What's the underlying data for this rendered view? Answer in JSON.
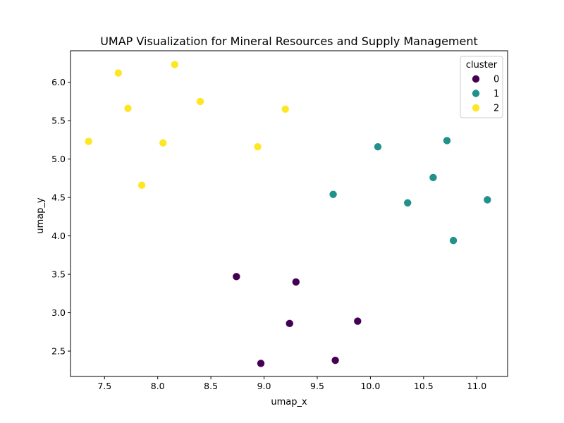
{
  "chart_data": {
    "type": "scatter",
    "title": "UMAP Visualization for Mineral Resources and Supply Management",
    "xlabel": "umap_x",
    "ylabel": "umap_y",
    "xlim": [
      7.18,
      11.29
    ],
    "ylim": [
      2.17,
      6.41
    ],
    "xticks": [
      "7.5",
      "8.0",
      "8.5",
      "9.0",
      "9.5",
      "10.0",
      "10.5",
      "11.0"
    ],
    "yticks": [
      "2.5",
      "3.0",
      "3.5",
      "4.0",
      "4.5",
      "5.0",
      "5.5",
      "6.0"
    ],
    "grid": false,
    "legend": {
      "title": "cluster",
      "placement": "top-right"
    },
    "series": [
      {
        "name": "0",
        "color": "#440154",
        "points": [
          {
            "x": 8.74,
            "y": 3.47
          },
          {
            "x": 9.3,
            "y": 3.4
          },
          {
            "x": 9.24,
            "y": 2.86
          },
          {
            "x": 9.88,
            "y": 2.89
          },
          {
            "x": 8.97,
            "y": 2.34
          },
          {
            "x": 9.67,
            "y": 2.38
          }
        ]
      },
      {
        "name": "1",
        "color": "#21918c",
        "points": [
          {
            "x": 10.07,
            "y": 5.16
          },
          {
            "x": 10.72,
            "y": 5.24
          },
          {
            "x": 9.65,
            "y": 4.54
          },
          {
            "x": 10.59,
            "y": 4.76
          },
          {
            "x": 10.35,
            "y": 4.43
          },
          {
            "x": 11.1,
            "y": 4.47
          },
          {
            "x": 10.78,
            "y": 3.94
          }
        ]
      },
      {
        "name": "2",
        "color": "#fde725",
        "points": [
          {
            "x": 7.63,
            "y": 6.12
          },
          {
            "x": 8.16,
            "y": 6.23
          },
          {
            "x": 8.4,
            "y": 5.75
          },
          {
            "x": 7.72,
            "y": 5.66
          },
          {
            "x": 9.2,
            "y": 5.65
          },
          {
            "x": 7.35,
            "y": 5.23
          },
          {
            "x": 8.05,
            "y": 5.21
          },
          {
            "x": 8.94,
            "y": 5.16
          },
          {
            "x": 7.85,
            "y": 4.66
          }
        ]
      }
    ]
  }
}
